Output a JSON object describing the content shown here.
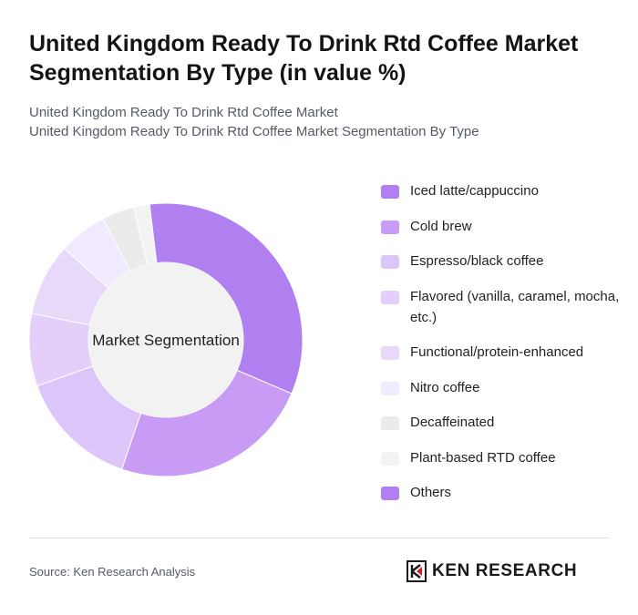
{
  "header": {
    "title": "United Kingdom Ready To Drink Rtd Coffee Market Segmentation By Type (in value %)",
    "subtitle_line1": "United Kingdom Ready To Drink Rtd Coffee Market",
    "subtitle_line2": "United Kingdom Ready To Drink Rtd Coffee Market Segmentation By Type"
  },
  "chart_data": {
    "type": "pie",
    "center_label": "Market Segmentation",
    "categories": [
      "Iced latte/cappuccino",
      "Cold brew",
      "Espresso/black coffee",
      "Flavored (vanilla, caramel, mocha, etc.)",
      "Functional/protein-enhanced",
      "Nitro coffee",
      "Decaffeinated",
      "Plant-based RTD coffee",
      "Others"
    ],
    "values": [
      35,
      25,
      15,
      9,
      9,
      6,
      4,
      2,
      0
    ],
    "colors": [
      "#b07ff0",
      "#c89cf5",
      "#dcc6f9",
      "#e3cffa",
      "#e8d9fb",
      "#f1e9fd",
      "#ebebeb",
      "#f3f3f3",
      "#b07ff0"
    ],
    "legend_position": "right"
  },
  "footer": {
    "source": "Source: Ken Research Analysis",
    "brand": "KEN RESEARCH"
  }
}
